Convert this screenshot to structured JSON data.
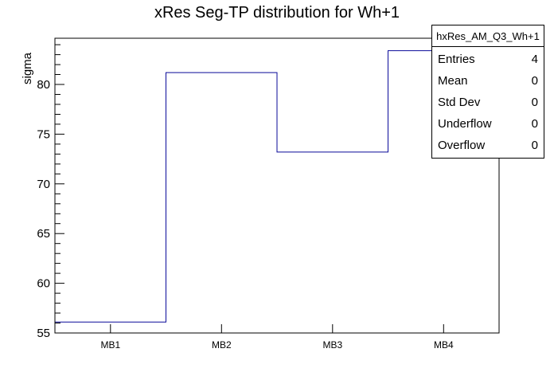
{
  "chart_data": {
    "type": "bar",
    "style": "root-step-histogram-outline",
    "title": "xRes Seg-TP distribution for Wh+1",
    "xlabel": "",
    "ylabel": "sigma",
    "categories": [
      "MB1",
      "MB2",
      "MB3",
      "MB4"
    ],
    "values": [
      56.1,
      81.2,
      73.2,
      83.4
    ],
    "ylim": [
      55,
      84.65
    ],
    "y_major_ticks": [
      55,
      60,
      65,
      70,
      75,
      80
    ],
    "y_minor_tick_step": 1,
    "grid": false,
    "legend_position": "none",
    "line_color": "#0a0a99",
    "frame_color": "#000000",
    "background_color": "#ffffff"
  },
  "stats_box": {
    "title": "hxRes_AM_Q3_Wh+1",
    "rows": [
      {
        "label": "Entries",
        "value": "4"
      },
      {
        "label": "Mean",
        "value": "0"
      },
      {
        "label": "Std Dev",
        "value": "0"
      },
      {
        "label": "Underflow",
        "value": "0"
      },
      {
        "label": "Overflow",
        "value": "0"
      }
    ]
  }
}
